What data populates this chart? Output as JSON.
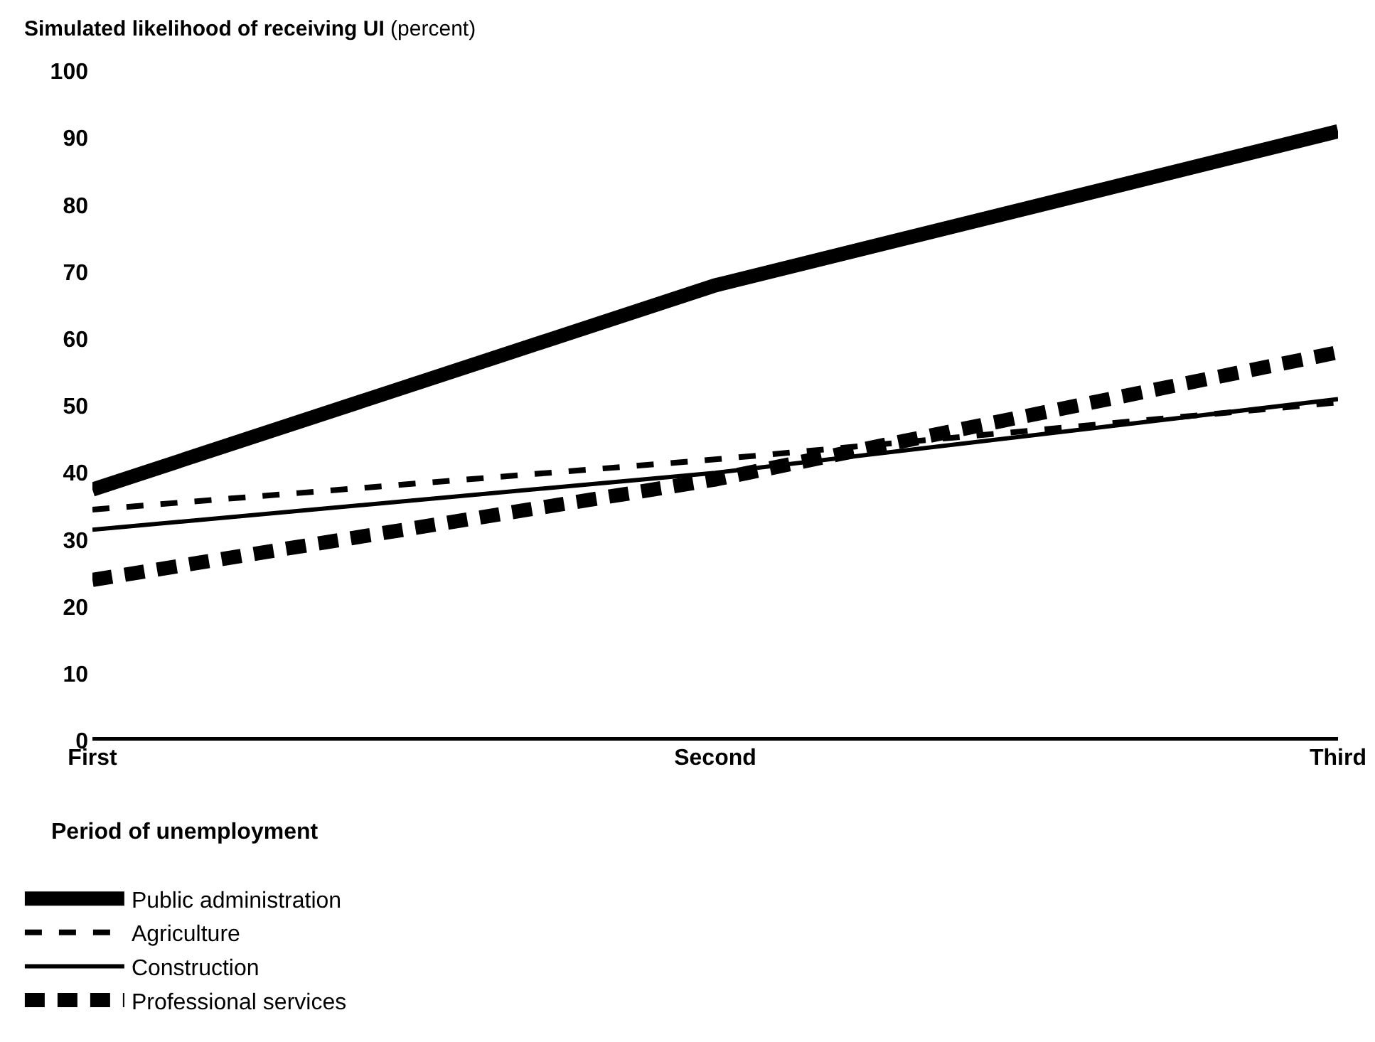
{
  "chart_data": {
    "type": "line",
    "ylabel": "Simulated likelihood of receiving UI (percent)",
    "xlabel": "Period of unemployment",
    "categories": [
      "First",
      "Second",
      "Third"
    ],
    "series": [
      {
        "name": "Public administration",
        "color": "#000000",
        "line_style": "solid",
        "values": [
          37.5,
          68,
          91
        ]
      },
      {
        "name": "Agriculture",
        "color": "#000000",
        "line_style": "dashed",
        "values": [
          34.5,
          42,
          50.5
        ]
      },
      {
        "name": "Construction",
        "color": "#000000",
        "line_style": "solid",
        "values": [
          31.5,
          40,
          51
        ]
      },
      {
        "name": "Professional services",
        "color": "#000000",
        "line_style": "dashed",
        "values": [
          24,
          39,
          58
        ]
      }
    ],
    "ylim": [
      0,
      100
    ],
    "yticks": [
      0,
      10,
      20,
      30,
      40,
      50,
      60,
      70,
      80,
      90,
      100
    ],
    "grid": false,
    "legend": "bottom left",
    "marker": "none"
  }
}
